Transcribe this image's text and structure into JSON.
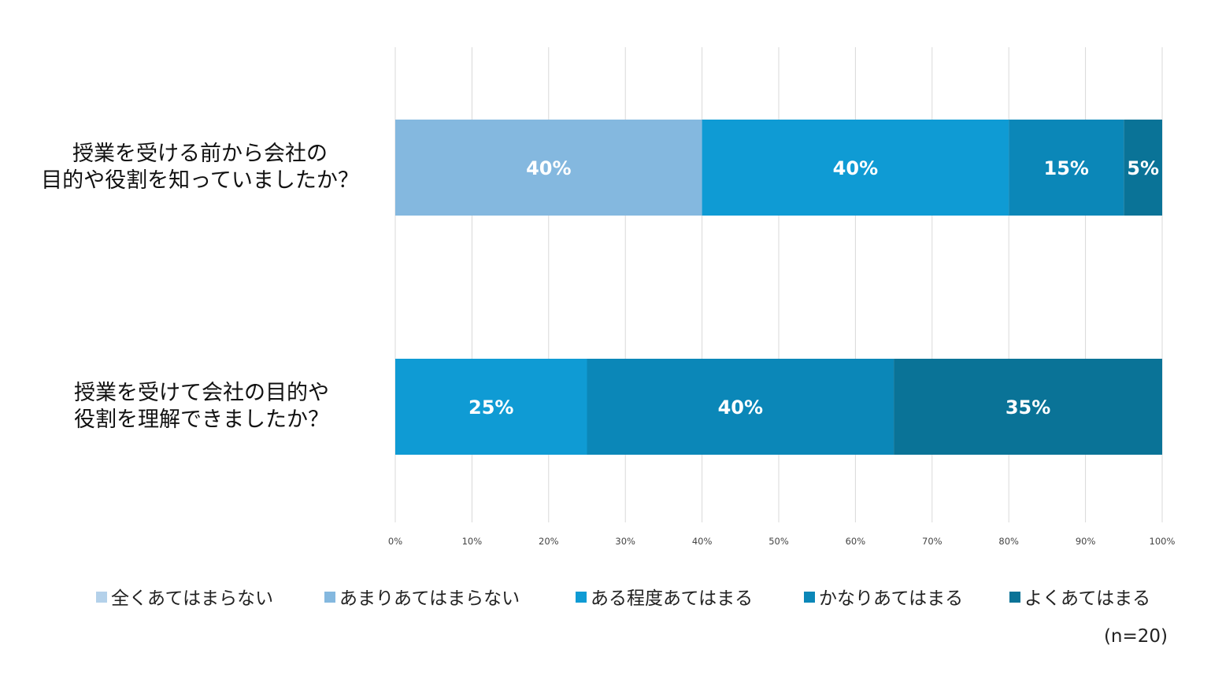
{
  "chart_data": {
    "type": "bar",
    "orientation": "horizontal",
    "stacked": "100%",
    "categories": [
      [
        "授業を受ける前から会社の",
        "目的や役割を知っていましたか？"
      ],
      [
        "授業を受けて会社の目的や",
        "役割を理解できましたか？"
      ]
    ],
    "series": [
      {
        "name": "全くあてはまらない",
        "color": "#b4d1ea",
        "values": [
          0,
          0
        ]
      },
      {
        "name": "あまりあてはまらない",
        "color": "#84b8df",
        "values": [
          40,
          0
        ]
      },
      {
        "name": "ある程度あてはまる",
        "color": "#0f9bd4",
        "values": [
          40,
          25
        ]
      },
      {
        "name": "かなりあてはまる",
        "color": "#0b87b8",
        "values": [
          15,
          40
        ]
      },
      {
        "name": "よくあてはまる",
        "color": "#0a7397",
        "values": [
          5,
          35
        ]
      }
    ],
    "xlim": [
      0,
      100
    ],
    "xticks": [
      "0%",
      "10%",
      "20%",
      "30%",
      "40%",
      "50%",
      "60%",
      "70%",
      "80%",
      "90%",
      "100%"
    ],
    "data_label_suffix": "%",
    "grid": true,
    "legend": "bottom",
    "note": "(n=20)"
  }
}
